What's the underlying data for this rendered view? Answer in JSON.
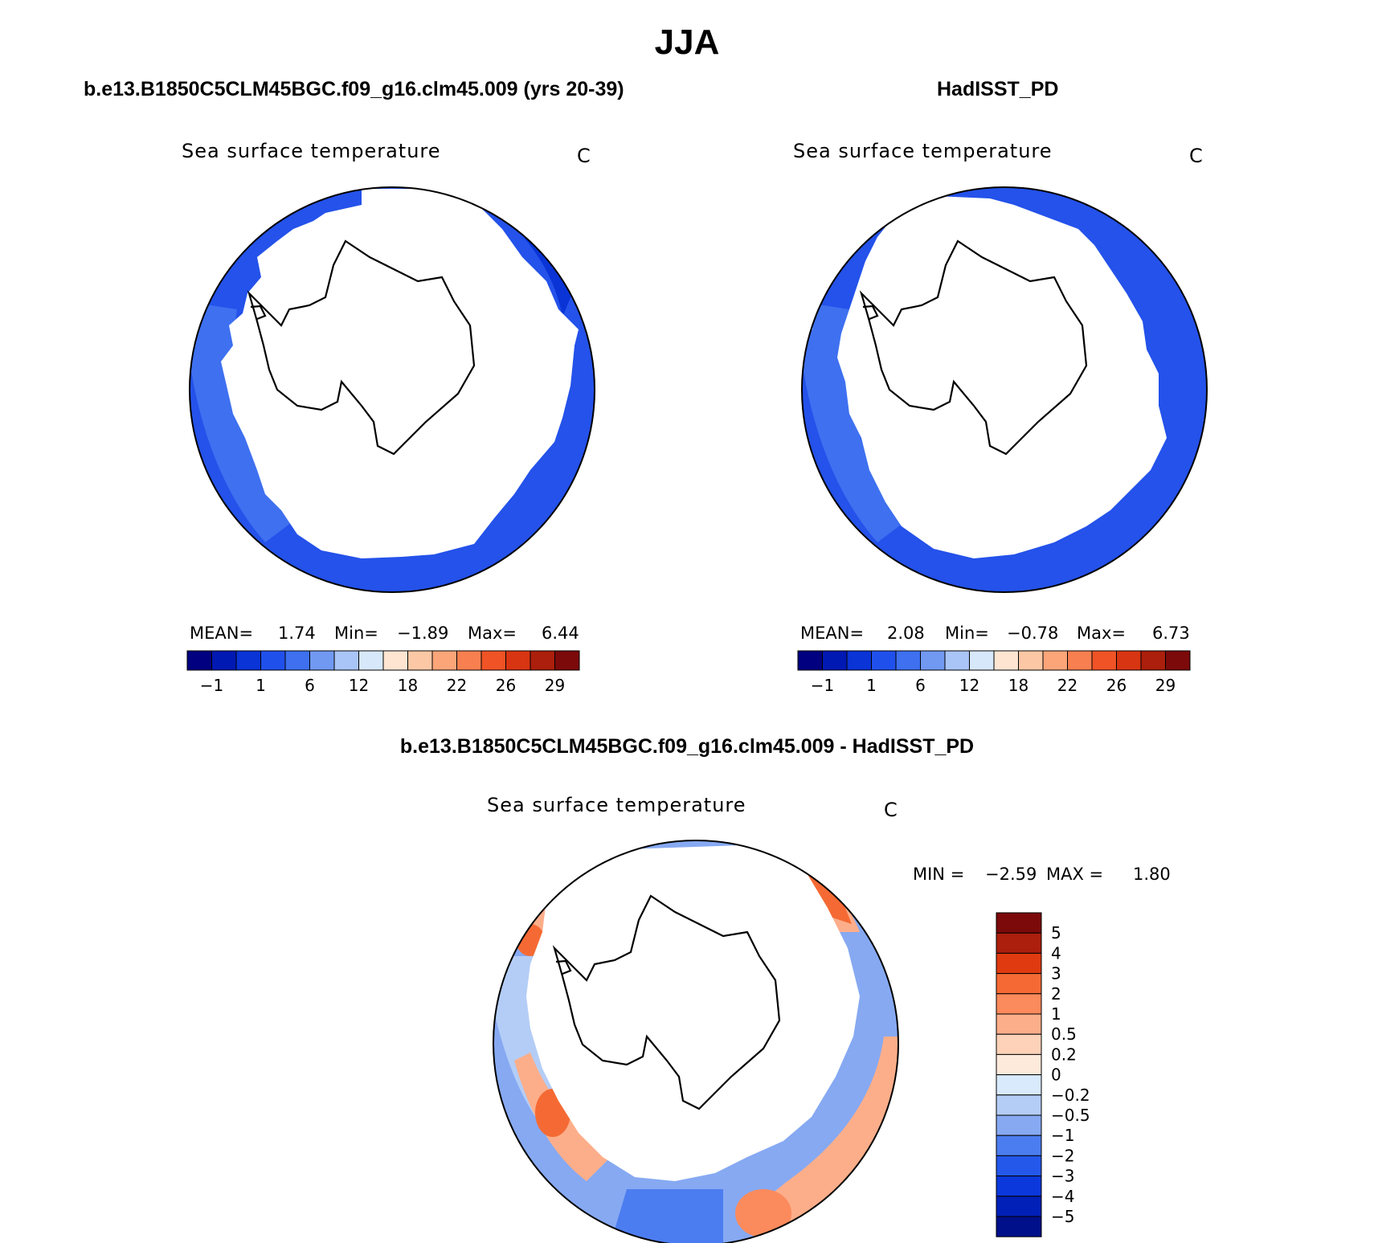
{
  "page": {
    "season": "JJA",
    "panel_left_title": "b.e13.B1850C5CLM45BGC.f09_g16.clm45.009 (yrs 20-39)",
    "panel_right_title": "HadISST_PD",
    "panel_diff_title": "b.e13.B1850C5CLM45BGC.f09_g16.clm45.009 - HadISST_PD"
  },
  "chart_data": [
    {
      "type": "heatmap",
      "title": "Sea surface temperature",
      "units": "C",
      "projection": "south polar stereographic",
      "stats": {
        "mean_label": "MEAN=",
        "mean": "1.74",
        "min_label": "Min=",
        "min": "−1.89",
        "max_label": "Max=",
        "max": "6.44"
      },
      "colorbar_ticks": [
        "−1",
        "1",
        "6",
        "12",
        "18",
        "22",
        "26",
        "29"
      ],
      "colors": [
        "#000080",
        "#0019b3",
        "#0a34d6",
        "#2050ec",
        "#3e70f0",
        "#7199f2",
        "#a9c4f7",
        "#d6e8fa",
        "#fde5d2",
        "#fcc7a5",
        "#fba579",
        "#f87f4f",
        "#ef5326",
        "#d83512",
        "#ab1f0c",
        "#7c0a0a"
      ]
    },
    {
      "type": "heatmap",
      "title": "Sea surface temperature",
      "units": "C",
      "projection": "south polar stereographic",
      "stats": {
        "mean_label": "MEAN=",
        "mean": "2.08",
        "min_label": "Min=",
        "min": "−0.78",
        "max_label": "Max=",
        "max": "6.73"
      },
      "colorbar_ticks": [
        "−1",
        "1",
        "6",
        "12",
        "18",
        "22",
        "26",
        "29"
      ],
      "colors": [
        "#000080",
        "#0019b3",
        "#0a34d6",
        "#2050ec",
        "#3e70f0",
        "#7199f2",
        "#a9c4f7",
        "#d6e8fa",
        "#fde5d2",
        "#fcc7a5",
        "#fba579",
        "#f87f4f",
        "#ef5326",
        "#d83512",
        "#ab1f0c",
        "#7c0a0a"
      ]
    },
    {
      "type": "heatmap",
      "title": "Sea surface temperature",
      "units": "C",
      "projection": "south polar stereographic",
      "stats": {
        "min_label": "MIN =",
        "min": "−2.59",
        "max_label": "MAX =",
        "max": "1.80"
      },
      "colorbar_ticks": [
        "5",
        "4",
        "3",
        "2",
        "1",
        "0.5",
        "0.2",
        "0",
        "−0.2",
        "−0.5",
        "−1",
        "−2",
        "−3",
        "−4",
        "−5"
      ],
      "colors": [
        "#7c0a0a",
        "#ab1f0c",
        "#df3a10",
        "#f56a34",
        "#fb8a5c",
        "#fcae8a",
        "#fdd2b8",
        "#fdeadb",
        "#d8eafb",
        "#b4cdf6",
        "#86a9f2",
        "#4c7df0",
        "#2458ea",
        "#0b38dd",
        "#0020b8",
        "#000f8a"
      ]
    }
  ]
}
